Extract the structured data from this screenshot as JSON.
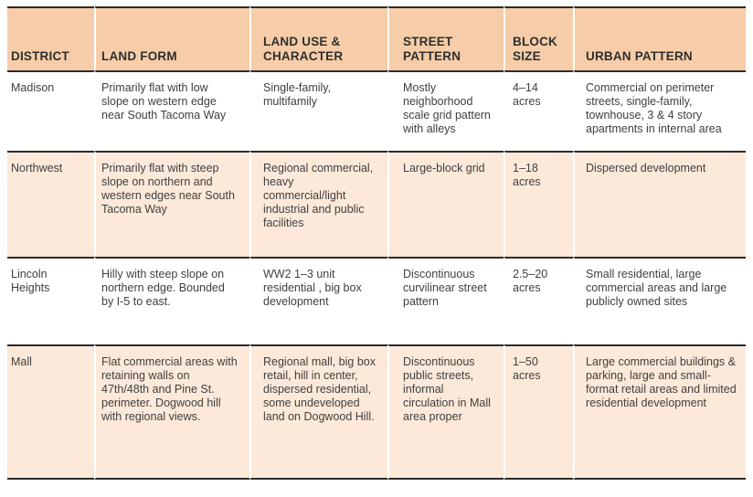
{
  "theme": {
    "header_bg": "#f6cda8",
    "row_alt_bg": "#fce9d9",
    "line": "#2b2b2b",
    "divider": "#ffffff",
    "header_text": "#2f2f2f",
    "body_text": "#404040"
  },
  "table": {
    "columns": [
      {
        "key": "district",
        "label": "DISTRICT"
      },
      {
        "key": "land_form",
        "label": "LAND FORM"
      },
      {
        "key": "land_use_character",
        "label": "LAND USE & CHARACTER"
      },
      {
        "key": "street_pattern",
        "label": "STREET PATTERN"
      },
      {
        "key": "block_size",
        "label": "BLOCK SIZE"
      },
      {
        "key": "urban_pattern",
        "label": "URBAN PATTERN"
      }
    ],
    "rows": [
      {
        "district": "Madison",
        "land_form": "Primarily flat with low slope on western edge near South Tacoma Way",
        "land_use_character": "Single-family, multifamily",
        "street_pattern": "Mostly neighborhood scale grid pattern with alleys",
        "block_size": "4–14 acres",
        "urban_pattern": "Commercial on perimeter streets, single-family, townhouse, 3 & 4 story apartments in internal area"
      },
      {
        "district": "Northwest",
        "land_form": "Primarily flat with steep slope on northern and western edges near South Tacoma Way",
        "land_use_character": "Regional commercial, heavy commercial/light industrial and public facilities",
        "street_pattern": "Large-block grid",
        "block_size": "1–18 acres",
        "urban_pattern": "Dispersed development"
      },
      {
        "district": "Lincoln Heights",
        "land_form": "Hilly with steep slope on northern edge. Bounded by I-5 to east.",
        "land_use_character": "WW2 1–3 unit residential , big box development",
        "street_pattern": "Discontinuous curvilinear street pattern",
        "block_size": "2.5–20 acres",
        "urban_pattern": "Small residential, large commercial areas and large publicly owned sites"
      },
      {
        "district": "Mall",
        "land_form": "Flat commercial areas with retaining walls on 47th/48th and Pine St. perimeter. Dogwood hill with regional views.",
        "land_use_character": "Regional mall, big box retail, hill in center, dispersed residential, some undeveloped land on Dogwood Hill.",
        "street_pattern": "Discontinuous public streets, informal circulation in Mall area proper",
        "block_size": "1–50 acres",
        "urban_pattern": "Large commercial buildings & parking, large and small-format retail areas and limited residential development"
      }
    ]
  }
}
